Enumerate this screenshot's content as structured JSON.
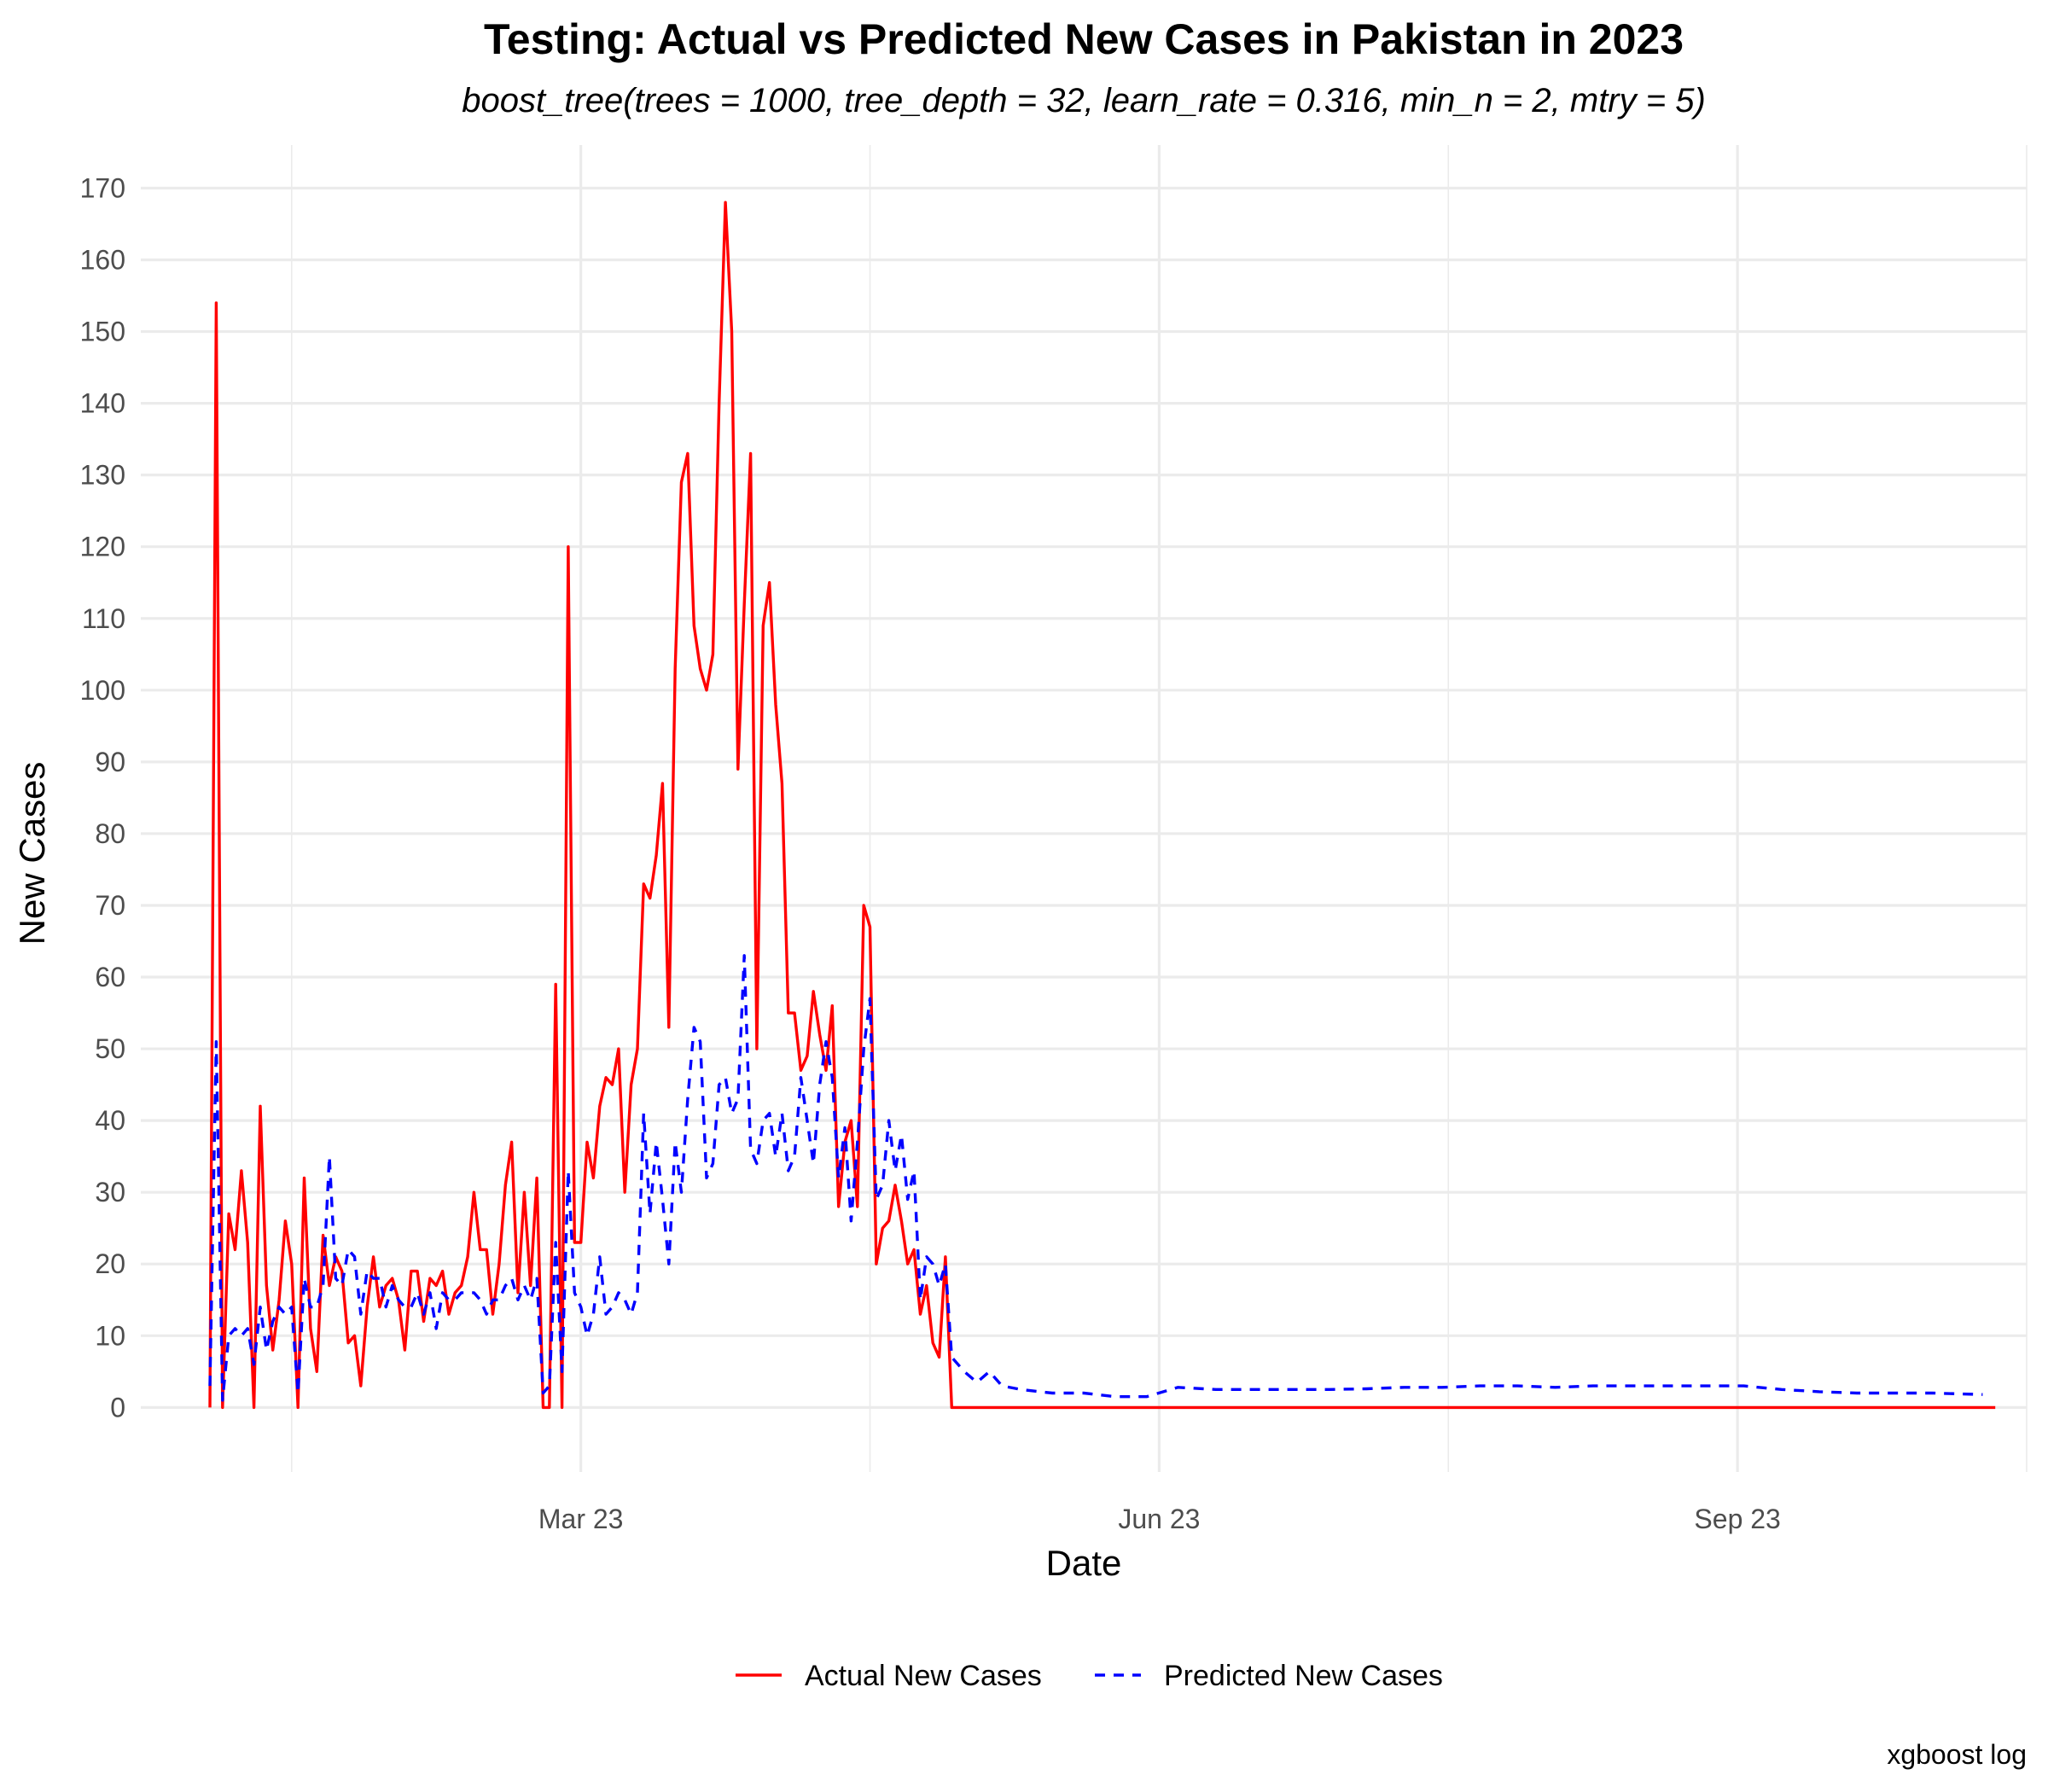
{
  "chart_data": {
    "type": "line",
    "title": "Testing: Actual vs Predicted New Cases in Pakistan in 2023",
    "subtitle": "boost_tree(trees = 1000, tree_depth = 32, learn_rate = 0.316, min_n = 2, mtry = 5)",
    "xlabel": "Date",
    "ylabel": "New Cases",
    "caption": "xgboost log",
    "x_ticks": [
      {
        "date": "2023-03-01",
        "label": "Mar 23"
      },
      {
        "date": "2023-06-01",
        "label": "Jun 23"
      },
      {
        "date": "2023-09-01",
        "label": "Sep 23"
      }
    ],
    "xlim": [
      "2022-12-21",
      "2023-10-17"
    ],
    "ylim": [
      -9,
      176
    ],
    "y_ticks": [
      0,
      10,
      20,
      30,
      40,
      50,
      60,
      70,
      80,
      90,
      100,
      110,
      120,
      130,
      140,
      150,
      160,
      170
    ],
    "grid": true,
    "legend_position": "bottom",
    "series": [
      {
        "name": "Actual New Cases",
        "color": "#ff0000",
        "style": "solid",
        "points": [
          [
            "2023-01-01",
            0
          ],
          [
            "2023-01-02",
            154
          ],
          [
            "2023-01-03",
            0
          ],
          [
            "2023-01-04",
            27
          ],
          [
            "2023-01-05",
            22
          ],
          [
            "2023-01-06",
            33
          ],
          [
            "2023-01-07",
            23
          ],
          [
            "2023-01-08",
            0
          ],
          [
            "2023-01-09",
            42
          ],
          [
            "2023-01-10",
            17
          ],
          [
            "2023-01-11",
            8
          ],
          [
            "2023-01-12",
            15
          ],
          [
            "2023-01-13",
            26
          ],
          [
            "2023-01-14",
            20
          ],
          [
            "2023-01-15",
            0
          ],
          [
            "2023-01-16",
            32
          ],
          [
            "2023-01-17",
            11
          ],
          [
            "2023-01-18",
            5
          ],
          [
            "2023-01-19",
            24
          ],
          [
            "2023-01-20",
            17
          ],
          [
            "2023-01-21",
            21
          ],
          [
            "2023-01-22",
            19
          ],
          [
            "2023-01-23",
            9
          ],
          [
            "2023-01-24",
            10
          ],
          [
            "2023-01-25",
            3
          ],
          [
            "2023-01-26",
            14
          ],
          [
            "2023-01-27",
            21
          ],
          [
            "2023-01-28",
            14
          ],
          [
            "2023-01-29",
            17
          ],
          [
            "2023-01-30",
            18
          ],
          [
            "2023-01-31",
            15
          ],
          [
            "2023-02-01",
            8
          ],
          [
            "2023-02-02",
            19
          ],
          [
            "2023-02-03",
            19
          ],
          [
            "2023-02-04",
            12
          ],
          [
            "2023-02-05",
            18
          ],
          [
            "2023-02-06",
            17
          ],
          [
            "2023-02-07",
            19
          ],
          [
            "2023-02-08",
            13
          ],
          [
            "2023-02-09",
            16
          ],
          [
            "2023-02-10",
            17
          ],
          [
            "2023-02-11",
            21
          ],
          [
            "2023-02-12",
            30
          ],
          [
            "2023-02-13",
            22
          ],
          [
            "2023-02-14",
            22
          ],
          [
            "2023-02-15",
            13
          ],
          [
            "2023-02-16",
            20
          ],
          [
            "2023-02-17",
            31
          ],
          [
            "2023-02-18",
            37
          ],
          [
            "2023-02-19",
            16
          ],
          [
            "2023-02-20",
            30
          ],
          [
            "2023-02-21",
            17
          ],
          [
            "2023-02-22",
            32
          ],
          [
            "2023-02-23",
            0
          ],
          [
            "2023-02-24",
            0
          ],
          [
            "2023-02-25",
            59
          ],
          [
            "2023-02-26",
            0
          ],
          [
            "2023-02-27",
            120
          ],
          [
            "2023-02-28",
            23
          ],
          [
            "2023-03-01",
            23
          ],
          [
            "2023-03-02",
            37
          ],
          [
            "2023-03-03",
            32
          ],
          [
            "2023-03-04",
            42
          ],
          [
            "2023-03-05",
            46
          ],
          [
            "2023-03-06",
            45
          ],
          [
            "2023-03-07",
            50
          ],
          [
            "2023-03-08",
            30
          ],
          [
            "2023-03-09",
            45
          ],
          [
            "2023-03-10",
            50
          ],
          [
            "2023-03-11",
            73
          ],
          [
            "2023-03-12",
            71
          ],
          [
            "2023-03-13",
            77
          ],
          [
            "2023-03-14",
            87
          ],
          [
            "2023-03-15",
            53
          ],
          [
            "2023-03-16",
            103
          ],
          [
            "2023-03-17",
            129
          ],
          [
            "2023-03-18",
            133
          ],
          [
            "2023-03-19",
            109
          ],
          [
            "2023-03-20",
            103
          ],
          [
            "2023-03-21",
            100
          ],
          [
            "2023-03-22",
            105
          ],
          [
            "2023-03-23",
            140
          ],
          [
            "2023-03-24",
            168
          ],
          [
            "2023-03-25",
            150
          ],
          [
            "2023-03-26",
            89
          ],
          [
            "2023-03-27",
            112
          ],
          [
            "2023-03-28",
            133
          ],
          [
            "2023-03-29",
            50
          ],
          [
            "2023-03-30",
            109
          ],
          [
            "2023-03-31",
            115
          ],
          [
            "2023-04-01",
            98
          ],
          [
            "2023-04-02",
            87
          ],
          [
            "2023-04-03",
            55
          ],
          [
            "2023-04-04",
            55
          ],
          [
            "2023-04-05",
            47
          ],
          [
            "2023-04-06",
            49
          ],
          [
            "2023-04-07",
            58
          ],
          [
            "2023-04-08",
            52
          ],
          [
            "2023-04-09",
            47
          ],
          [
            "2023-04-10",
            56
          ],
          [
            "2023-04-11",
            28
          ],
          [
            "2023-04-12",
            37
          ],
          [
            "2023-04-13",
            40
          ],
          [
            "2023-04-14",
            28
          ],
          [
            "2023-04-15",
            70
          ],
          [
            "2023-04-16",
            67
          ],
          [
            "2023-04-17",
            20
          ],
          [
            "2023-04-18",
            25
          ],
          [
            "2023-04-19",
            26
          ],
          [
            "2023-04-20",
            31
          ],
          [
            "2023-04-21",
            26
          ],
          [
            "2023-04-22",
            20
          ],
          [
            "2023-04-23",
            22
          ],
          [
            "2023-04-24",
            13
          ],
          [
            "2023-04-25",
            17
          ],
          [
            "2023-04-26",
            9
          ],
          [
            "2023-04-27",
            7
          ],
          [
            "2023-04-28",
            21
          ],
          [
            "2023-04-29",
            0
          ],
          [
            "2023-10-12",
            0
          ]
        ]
      },
      {
        "name": "Predicted New Cases",
        "color": "#0000ff",
        "style": "dashed",
        "points": [
          [
            "2023-01-01",
            3
          ],
          [
            "2023-01-02",
            51
          ],
          [
            "2023-01-03",
            1
          ],
          [
            "2023-01-04",
            10
          ],
          [
            "2023-01-05",
            11
          ],
          [
            "2023-01-06",
            10
          ],
          [
            "2023-01-07",
            11
          ],
          [
            "2023-01-08",
            6
          ],
          [
            "2023-01-09",
            14
          ],
          [
            "2023-01-10",
            8
          ],
          [
            "2023-01-11",
            12
          ],
          [
            "2023-01-12",
            14
          ],
          [
            "2023-01-13",
            13
          ],
          [
            "2023-01-14",
            14
          ],
          [
            "2023-01-15",
            2
          ],
          [
            "2023-01-16",
            18
          ],
          [
            "2023-01-17",
            14
          ],
          [
            "2023-01-18",
            14
          ],
          [
            "2023-01-19",
            17
          ],
          [
            "2023-01-20",
            35
          ],
          [
            "2023-01-21",
            18
          ],
          [
            "2023-01-22",
            17
          ],
          [
            "2023-01-23",
            22
          ],
          [
            "2023-01-24",
            21
          ],
          [
            "2023-01-25",
            13
          ],
          [
            "2023-01-26",
            19
          ],
          [
            "2023-01-27",
            18
          ],
          [
            "2023-01-28",
            18
          ],
          [
            "2023-01-29",
            14
          ],
          [
            "2023-01-30",
            17
          ],
          [
            "2023-01-31",
            15
          ],
          [
            "2023-02-01",
            14
          ],
          [
            "2023-02-02",
            14
          ],
          [
            "2023-02-03",
            16
          ],
          [
            "2023-02-04",
            13
          ],
          [
            "2023-02-05",
            16
          ],
          [
            "2023-02-06",
            11
          ],
          [
            "2023-02-07",
            16
          ],
          [
            "2023-02-08",
            15
          ],
          [
            "2023-02-09",
            15
          ],
          [
            "2023-02-10",
            16
          ],
          [
            "2023-02-11",
            16
          ],
          [
            "2023-02-12",
            16
          ],
          [
            "2023-02-13",
            15
          ],
          [
            "2023-02-14",
            13
          ],
          [
            "2023-02-15",
            15
          ],
          [
            "2023-02-16",
            15
          ],
          [
            "2023-02-17",
            17
          ],
          [
            "2023-02-18",
            18
          ],
          [
            "2023-02-19",
            15
          ],
          [
            "2023-02-20",
            17
          ],
          [
            "2023-02-21",
            15
          ],
          [
            "2023-02-22",
            18
          ],
          [
            "2023-02-23",
            2
          ],
          [
            "2023-02-24",
            3
          ],
          [
            "2023-02-25",
            23
          ],
          [
            "2023-02-26",
            5
          ],
          [
            "2023-02-27",
            33
          ],
          [
            "2023-02-28",
            16
          ],
          [
            "2023-03-01",
            14
          ],
          [
            "2023-03-02",
            10
          ],
          [
            "2023-03-03",
            13
          ],
          [
            "2023-03-04",
            21
          ],
          [
            "2023-03-05",
            13
          ],
          [
            "2023-03-06",
            14
          ],
          [
            "2023-03-07",
            16
          ],
          [
            "2023-03-08",
            15
          ],
          [
            "2023-03-09",
            13
          ],
          [
            "2023-03-10",
            16
          ],
          [
            "2023-03-11",
            41
          ],
          [
            "2023-03-12",
            27
          ],
          [
            "2023-03-13",
            37
          ],
          [
            "2023-03-14",
            29
          ],
          [
            "2023-03-15",
            20
          ],
          [
            "2023-03-16",
            37
          ],
          [
            "2023-03-17",
            30
          ],
          [
            "2023-03-18",
            43
          ],
          [
            "2023-03-19",
            53
          ],
          [
            "2023-03-20",
            51
          ],
          [
            "2023-03-21",
            32
          ],
          [
            "2023-03-22",
            34
          ],
          [
            "2023-03-23",
            45
          ],
          [
            "2023-03-24",
            46
          ],
          [
            "2023-03-25",
            41
          ],
          [
            "2023-03-26",
            43
          ],
          [
            "2023-03-27",
            63
          ],
          [
            "2023-03-28",
            36
          ],
          [
            "2023-03-29",
            34
          ],
          [
            "2023-03-30",
            40
          ],
          [
            "2023-03-31",
            41
          ],
          [
            "2023-04-01",
            35
          ],
          [
            "2023-04-02",
            41
          ],
          [
            "2023-04-03",
            33
          ],
          [
            "2023-04-04",
            35
          ],
          [
            "2023-04-05",
            46
          ],
          [
            "2023-04-06",
            40
          ],
          [
            "2023-04-07",
            34
          ],
          [
            "2023-04-08",
            45
          ],
          [
            "2023-04-09",
            51
          ],
          [
            "2023-04-10",
            46
          ],
          [
            "2023-04-11",
            32
          ],
          [
            "2023-04-12",
            39
          ],
          [
            "2023-04-13",
            26
          ],
          [
            "2023-04-14",
            37
          ],
          [
            "2023-04-15",
            50
          ],
          [
            "2023-04-16",
            57
          ],
          [
            "2023-04-17",
            29
          ],
          [
            "2023-04-18",
            31
          ],
          [
            "2023-04-19",
            40
          ],
          [
            "2023-04-20",
            33
          ],
          [
            "2023-04-21",
            38
          ],
          [
            "2023-04-22",
            29
          ],
          [
            "2023-04-23",
            33
          ],
          [
            "2023-04-24",
            15
          ],
          [
            "2023-04-25",
            21
          ],
          [
            "2023-04-26",
            20
          ],
          [
            "2023-04-27",
            17
          ],
          [
            "2023-04-28",
            20
          ],
          [
            "2023-04-29",
            7
          ],
          [
            "2023-05-01",
            5
          ],
          [
            "2023-05-03",
            3.5
          ],
          [
            "2023-05-05",
            5
          ],
          [
            "2023-05-07",
            3
          ],
          [
            "2023-05-10",
            2.5
          ],
          [
            "2023-05-15",
            2
          ],
          [
            "2023-05-20",
            2
          ],
          [
            "2023-05-25",
            1.5
          ],
          [
            "2023-05-30",
            1.5
          ],
          [
            "2023-06-04",
            2.8
          ],
          [
            "2023-06-10",
            2.5
          ],
          [
            "2023-06-16",
            2.5
          ],
          [
            "2023-06-22",
            2.5
          ],
          [
            "2023-06-28",
            2.5
          ],
          [
            "2023-07-04",
            2.6
          ],
          [
            "2023-07-10",
            2.8
          ],
          [
            "2023-07-16",
            2.8
          ],
          [
            "2023-07-22",
            3
          ],
          [
            "2023-07-28",
            3
          ],
          [
            "2023-08-03",
            2.8
          ],
          [
            "2023-08-09",
            3
          ],
          [
            "2023-08-15",
            3
          ],
          [
            "2023-08-21",
            3
          ],
          [
            "2023-08-27",
            3
          ],
          [
            "2023-09-02",
            3
          ],
          [
            "2023-09-08",
            2.5
          ],
          [
            "2023-09-14",
            2.2
          ],
          [
            "2023-09-20",
            2
          ],
          [
            "2023-09-26",
            2
          ],
          [
            "2023-10-02",
            2
          ],
          [
            "2023-10-10",
            1.8
          ]
        ]
      }
    ]
  }
}
